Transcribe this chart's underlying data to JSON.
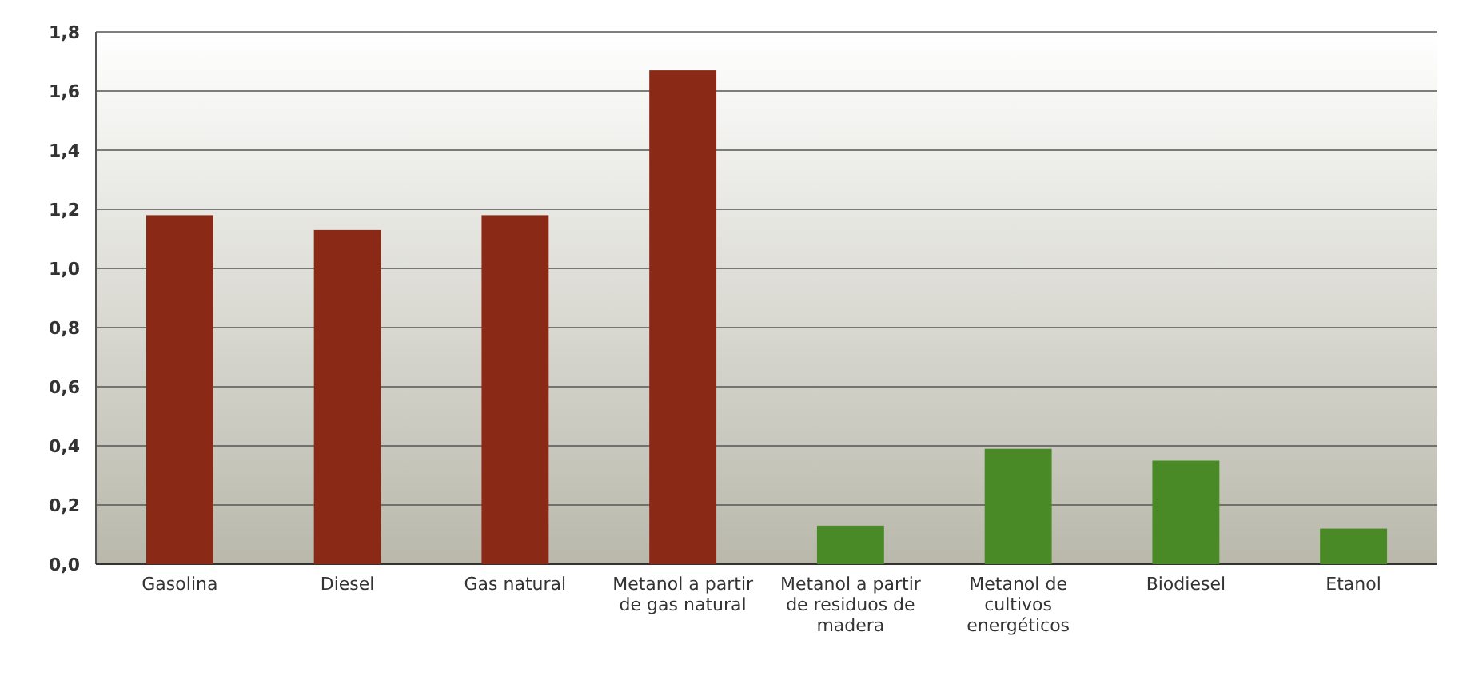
{
  "chart_data": {
    "type": "bar",
    "categories": [
      "Gasolina",
      "Diesel",
      "Gas natural",
      "Metanol a partir de gas natural",
      "Metanol a partir de residuos de madera",
      "Metanol de cultivos energéticos",
      "Biodiesel",
      "Etanol"
    ],
    "values": [
      1.18,
      1.13,
      1.18,
      1.67,
      0.13,
      0.39,
      0.35,
      0.12
    ],
    "colors": [
      "#8a2a16",
      "#8a2a16",
      "#8a2a16",
      "#8a2a16",
      "#4a8a26",
      "#4a8a26",
      "#4a8a26",
      "#4a8a26"
    ],
    "ylim": [
      0,
      1.8
    ],
    "yticks": [
      {
        "value": 0,
        "label": "0,0"
      },
      {
        "value": 0.2,
        "label": "0,2"
      },
      {
        "value": 0.4,
        "label": "0,4"
      },
      {
        "value": 0.6,
        "label": "0,6"
      },
      {
        "value": 0.8,
        "label": "0,8"
      },
      {
        "value": 1,
        "label": "1,0"
      },
      {
        "value": 1.2,
        "label": "1,2"
      },
      {
        "value": 1.4,
        "label": "1,4"
      },
      {
        "value": 1.6,
        "label": "1,6"
      },
      {
        "value": 1.8,
        "label": "1,8"
      }
    ],
    "grid": "y"
  }
}
